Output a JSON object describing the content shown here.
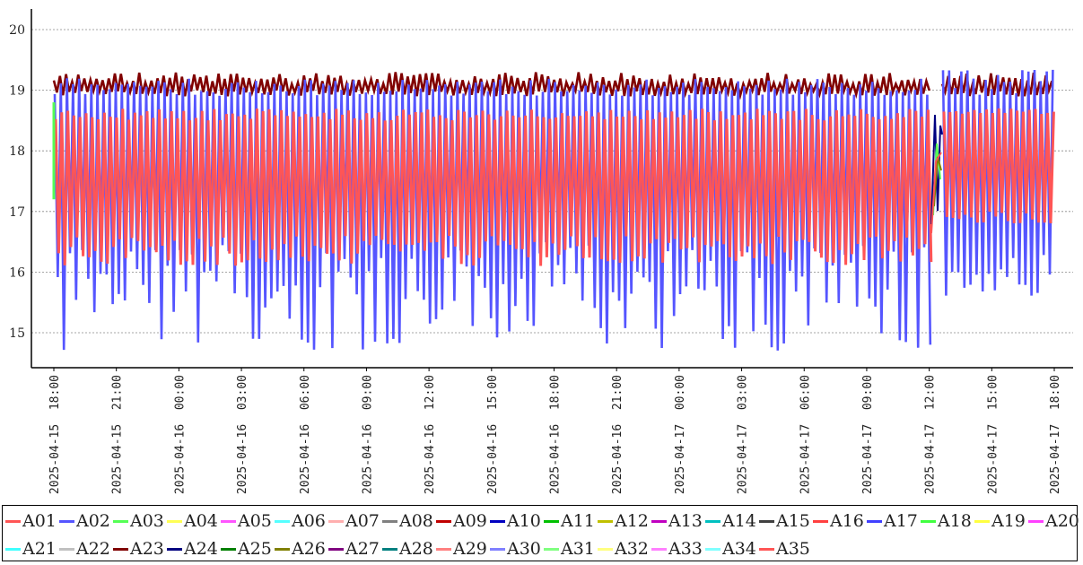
{
  "chart_data": {
    "type": "line",
    "title": "",
    "xlabel": "",
    "ylabel": "",
    "ylim": [
      14.5,
      20.3
    ],
    "yticks": [
      15,
      16,
      17,
      18,
      19,
      20
    ],
    "grid": "horizontal dotted",
    "legend_position": "bottom",
    "x_tick_labels": [
      "2025-04-15 18:00",
      "2025-04-15 21:00",
      "2025-04-16 00:00",
      "2025-04-16 03:00",
      "2025-04-16 06:00",
      "2025-04-16 09:00",
      "2025-04-16 12:00",
      "2025-04-16 15:00",
      "2025-04-16 18:00",
      "2025-04-16 21:00",
      "2025-04-17 00:00",
      "2025-04-17 03:00",
      "2025-04-17 06:00",
      "2025-04-17 09:00",
      "2025-04-17 12:00",
      "2025-04-17 15:00",
      "2025-04-17 18:00"
    ],
    "series": [
      {
        "name": "A01",
        "color": "#ff5555"
      },
      {
        "name": "A02",
        "color": "#5555ff"
      },
      {
        "name": "A03",
        "color": "#55ff55"
      },
      {
        "name": "A04",
        "color": "#ffff55"
      },
      {
        "name": "A05",
        "color": "#ff55ff"
      },
      {
        "name": "A06",
        "color": "#55ffff"
      },
      {
        "name": "A07",
        "color": "#ffafaf"
      },
      {
        "name": "A08",
        "color": "#808080"
      },
      {
        "name": "A09",
        "color": "#c00000"
      },
      {
        "name": "A10",
        "color": "#0000c0"
      },
      {
        "name": "A11",
        "color": "#00c000"
      },
      {
        "name": "A12",
        "color": "#c0c000"
      },
      {
        "name": "A13",
        "color": "#c000c0"
      },
      {
        "name": "A14",
        "color": "#00c0c0"
      },
      {
        "name": "A15",
        "color": "#404040"
      },
      {
        "name": "A16",
        "color": "#ff4040"
      },
      {
        "name": "A17",
        "color": "#4040ff"
      },
      {
        "name": "A18",
        "color": "#40ff40"
      },
      {
        "name": "A19",
        "color": "#ffff40"
      },
      {
        "name": "A20",
        "color": "#ff40ff"
      },
      {
        "name": "A21",
        "color": "#40ffff"
      },
      {
        "name": "A22",
        "color": "#c0c0c0"
      },
      {
        "name": "A23",
        "color": "#800000"
      },
      {
        "name": "A24",
        "color": "#000080"
      },
      {
        "name": "A25",
        "color": "#008000"
      },
      {
        "name": "A26",
        "color": "#808000"
      },
      {
        "name": "A27",
        "color": "#800080"
      },
      {
        "name": "A28",
        "color": "#008080"
      },
      {
        "name": "A29",
        "color": "#ff8080"
      },
      {
        "name": "A30",
        "color": "#8080ff"
      },
      {
        "name": "A31",
        "color": "#80ff80"
      },
      {
        "name": "A32",
        "color": "#ffff80"
      },
      {
        "name": "A33",
        "color": "#ff80ff"
      },
      {
        "name": "A34",
        "color": "#80ffff"
      },
      {
        "name": "A35",
        "color": "#ff5555"
      }
    ],
    "bands": {
      "description_free": true,
      "segments": [
        {
          "x_start": "2025-04-15 18:00",
          "x_end": "2025-04-17 12:00",
          "A23_top": [
            19.1,
            19.3
          ],
          "A02_max": [
            18.9,
            19.2
          ],
          "A02_min": [
            14.7,
            16.5
          ],
          "A01_max": [
            18.5,
            18.7
          ],
          "A01_min": [
            16.1,
            16.6
          ]
        },
        {
          "x_start": "2025-04-17 12:40",
          "x_end": "2025-04-17 18:00",
          "A23_top": [
            19.1,
            19.3
          ],
          "A02_max": [
            18.9,
            19.4
          ],
          "A02_min": [
            15.6,
            16.3
          ],
          "A01_max": [
            18.6,
            18.7
          ],
          "A01_min": [
            16.8,
            17.0
          ]
        }
      ]
    }
  }
}
